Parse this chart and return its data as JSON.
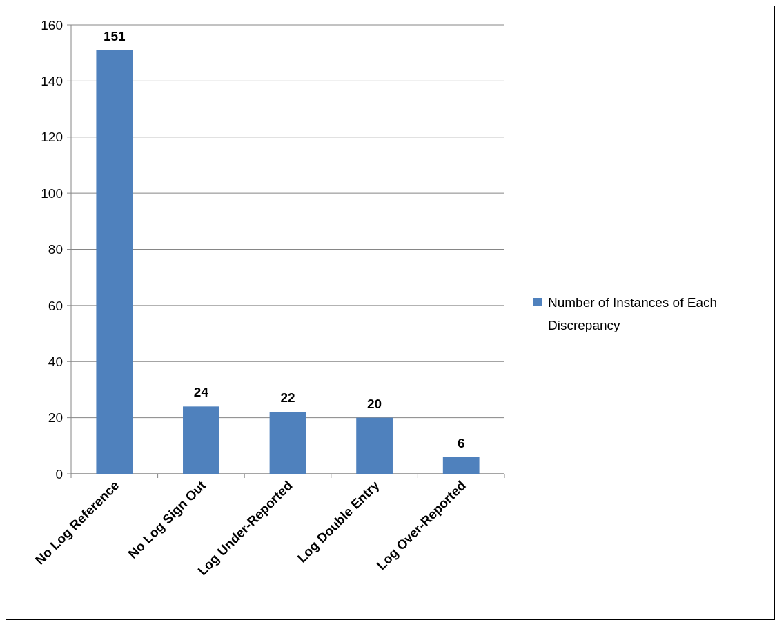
{
  "chart_data": {
    "type": "bar",
    "categories": [
      "No Log Reference",
      "No Log Sign Out",
      "Log Under-Reported",
      "Log Double Entry",
      "Log Over-Reported"
    ],
    "series": [
      {
        "name": "Number of Instances of Each Discrepancy",
        "color": "#4f81bd",
        "values": [
          151,
          24,
          22,
          20,
          6
        ]
      }
    ],
    "ylim": [
      0,
      160
    ],
    "yticks": [
      0,
      20,
      40,
      60,
      80,
      100,
      120,
      140,
      160
    ],
    "grid": "y",
    "legend": "right",
    "data_labels": true
  }
}
